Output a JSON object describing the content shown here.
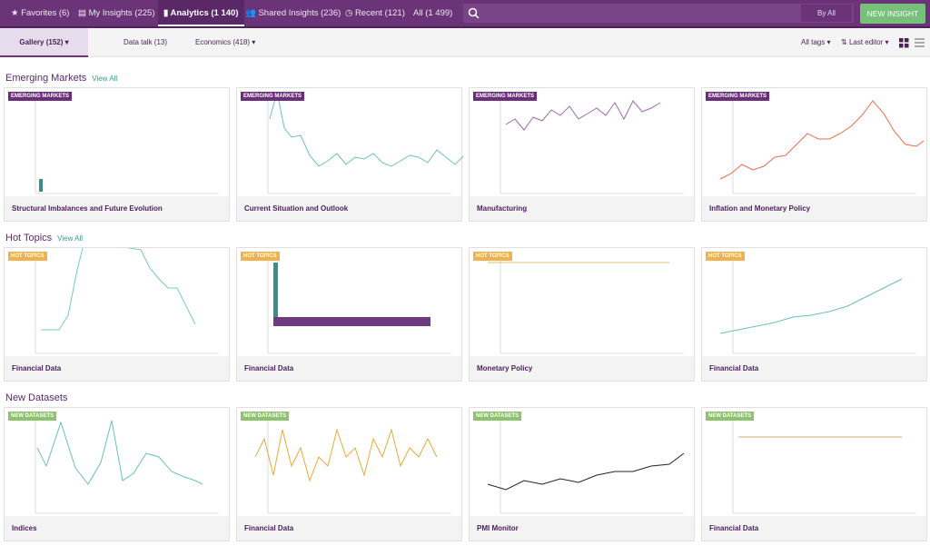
{
  "nav": {
    "tabs": [
      "Favorites (6)",
      "My Insights (225)",
      "Analytics (1 140)",
      "Shared Insights (236)",
      "Recent (121)",
      "All (1 499)"
    ],
    "filter": "By All",
    "button": "NEW INSIGHT"
  },
  "subnav": {
    "tabs": [
      "Gallery (152)",
      "Data talk (13)",
      "Economics (418)"
    ],
    "tags": "All tags",
    "sort": "Last editor"
  },
  "sections": [
    {
      "title": "Emerging Markets",
      "link": "View All",
      "tag": "EMERGING MARKETS",
      "cards": [
        "Structural Imbalances and Future Evolution",
        "Current Situation and Outlook",
        "Manufacturing",
        "Inflation and Monetary Policy"
      ]
    },
    {
      "title": "Hot Topics",
      "link": "View All",
      "tag": "HOT TOPICS",
      "cards": [
        "Financial Data",
        "Financial Data",
        "Monetary Policy",
        "Financial Data"
      ]
    },
    {
      "title": "New Datasets",
      "tag": "NEW DATASETS",
      "cards": [
        "Indices",
        "Financial Data",
        "PMI Monitor",
        "Financial Data"
      ]
    }
  ]
}
